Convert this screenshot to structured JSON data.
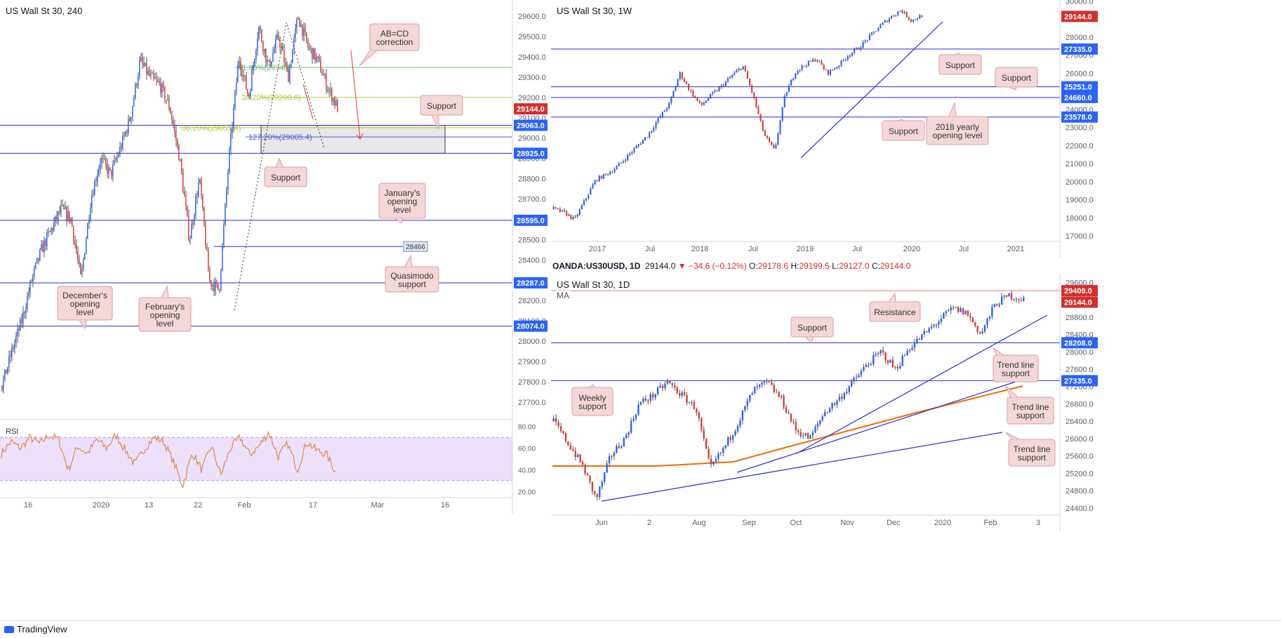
{
  "colors": {
    "up": "#2962ff",
    "down": "#e53935",
    "wick": "#555555",
    "level": "#2c2cd6",
    "fib": "#9ccc65",
    "ma": "#ef6c00",
    "rsi": "#e08a4a",
    "rsiBand": "#ece0fb",
    "priceLabel": "#d32f2f",
    "label": "#2962ff",
    "annotFill": "#f5d7d9",
    "annotStroke": "#d99ea3"
  },
  "brand": "TradingView",
  "charts": [
    {
      "id": "h4",
      "title": "US Wall St 30, 240",
      "chart_data": {
        "type": "candlestick",
        "ylim": [
          27620,
          29680
        ],
        "y_ticks": [
          29600.0,
          29500.0,
          29400.0,
          29300.0,
          29200.0,
          29100.0,
          29000.0,
          28900.0,
          28800.0,
          28700.0,
          28600.0,
          28500.0,
          28400.0,
          28300.0,
          28200.0,
          28100.0,
          28000.0,
          27900.0,
          27800.0,
          27700.0
        ],
        "x_ticks": [
          "16",
          "2020",
          "13",
          "22",
          "Feb",
          "17",
          "Mar",
          "16"
        ],
        "last_price": 29144.0,
        "price_labels": [
          {
            "text": "29144.0",
            "value": 29144,
            "style": "last"
          },
          {
            "text": "29063.0",
            "value": 29063,
            "style": "level"
          },
          {
            "text": "28925.0",
            "value": 28925,
            "style": "level"
          },
          {
            "text": "28595.0",
            "value": 28595,
            "style": "level"
          },
          {
            "text": "28287.0",
            "value": 28287,
            "style": "level"
          },
          {
            "text": "28074.0",
            "value": 28074,
            "style": "level"
          }
        ],
        "levels": [
          29063,
          28925,
          28595,
          28287,
          28074
        ],
        "qm_level": {
          "value": 28466,
          "text": "28466"
        },
        "fib_lines": [
          {
            "text": "61.80%(29348)",
            "value": 29348
          },
          {
            "text": "38.20%(29200.6)",
            "value": 29200.6
          },
          {
            "text": "38.20%(29051.4)",
            "value": 29051.4
          },
          {
            "text": "127.20%(29005.4)",
            "value": 29005.4
          }
        ],
        "rsi": {
          "label": "RSI",
          "ylim": [
            15,
            85
          ],
          "ticks": [
            80.0,
            60.0,
            40.0,
            20.0
          ],
          "band": [
            30,
            70
          ]
        },
        "annotations": [
          "AB=CD correction",
          "Support",
          "Support",
          "January's opening level",
          "Quasimodo support",
          "December's opening level",
          "February's opening level"
        ]
      }
    },
    {
      "id": "w1",
      "title": "US Wall St 30, 1W",
      "chart_data": {
        "type": "candlestick",
        "ylim": [
          16850,
          30050
        ],
        "y_ticks": [
          30000.0,
          29000.0,
          28000.0,
          27000.0,
          26000.0,
          25000.0,
          24000.0,
          23000.0,
          22000.0,
          21000.0,
          20000.0,
          19000.0,
          18000.0,
          17000.0
        ],
        "x_ticks": [
          "2017",
          "Jul",
          "2018",
          "Jul",
          "2019",
          "Jul",
          "2020",
          "Jul",
          "2021"
        ],
        "last_price": 29144.0,
        "price_labels": [
          {
            "text": "29144.0",
            "value": 29144,
            "style": "last"
          },
          {
            "text": "27335.0",
            "value": 27335,
            "style": "level"
          },
          {
            "text": "25251.0",
            "value": 25251,
            "style": "level"
          },
          {
            "text": "24660.0",
            "value": 24660,
            "style": "level"
          },
          {
            "text": "23578.0",
            "value": 23578,
            "style": "level"
          }
        ],
        "levels": [
          27335,
          25251,
          24660,
          23578
        ],
        "annotations": [
          "Support",
          "Support",
          "Support",
          "2018 yearly opening level"
        ]
      }
    },
    {
      "id": "d1",
      "title": "US Wall St 30, 1D",
      "ohlc": {
        "symbol": "OANDA:US30USD, 1D",
        "last": "29144.0",
        "change": "▼ −34.6 (−0.12%)",
        "o_label": "O:",
        "o": "29178.6",
        "h_label": "H:",
        "h": "29199.5",
        "l_label": "L:",
        "l": "29127.0",
        "c_label": "C:",
        "c": "29144.0"
      },
      "chart_data": {
        "type": "candlestick",
        "ylim": [
          24300,
          29800
        ],
        "y_ticks": [
          29600.0,
          29200.0,
          28800.0,
          28400.0,
          28000.0,
          27600.0,
          27200.0,
          26800.0,
          26400.0,
          26000.0,
          25600.0,
          25200.0,
          24800.0,
          24400.0
        ],
        "x_ticks": [
          "Jun",
          "2",
          "Aug",
          "Sep",
          "Oct",
          "Nov",
          "Dec",
          "2020",
          "Feb",
          "3"
        ],
        "last_price": 29144.0,
        "ma_label": "MA",
        "price_labels": [
          {
            "text": "29409.0",
            "value": 29409,
            "style": "last"
          },
          {
            "text": "29144.0",
            "value": 29144,
            "style": "last"
          },
          {
            "text": "28208.0",
            "value": 28208,
            "style": "level"
          },
          {
            "text": "27335.0",
            "value": 27335,
            "style": "level"
          }
        ],
        "levels": [
          29409,
          28208,
          27335
        ],
        "annotations": [
          "Support",
          "Resistance",
          "Weekly support",
          "Trend line support",
          "Trend line support",
          "Trend line support"
        ]
      }
    }
  ]
}
